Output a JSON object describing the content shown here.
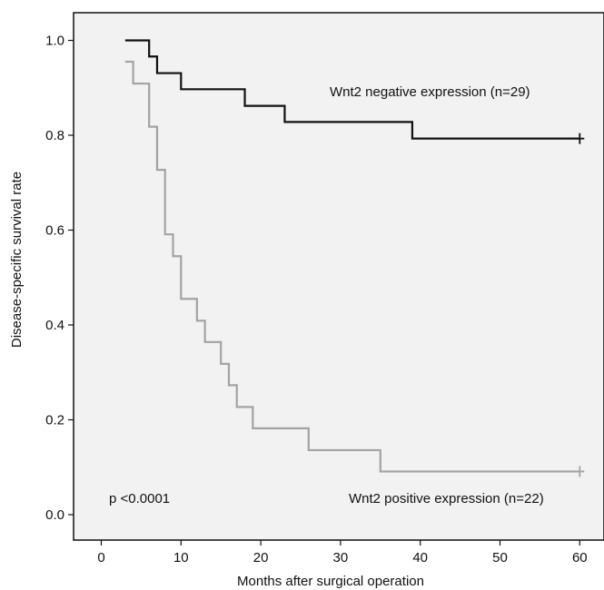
{
  "chart_data": {
    "type": "line",
    "subtype": "kaplan-meier step",
    "xlabel": "Months after surgical operation",
    "ylabel": "Disease-specific survival rate",
    "xlim": [
      -3,
      63
    ],
    "ylim": [
      -0.05,
      1.06
    ],
    "xticks": [
      0,
      10,
      20,
      30,
      40,
      50,
      60
    ],
    "yticks": [
      0.0,
      0.2,
      0.4,
      0.6,
      0.8,
      1.0
    ],
    "xtick_labels": [
      "0",
      "10",
      "20",
      "30",
      "40",
      "50",
      "60"
    ],
    "ytick_labels": [
      "0.0",
      "0.2",
      "0.4",
      "0.6",
      "0.8",
      "1.0"
    ],
    "grid": false,
    "plot_background": "#f2f2f2",
    "series": [
      {
        "name": "Wnt2 negative expression (n=29)",
        "color": "#111111",
        "censor_mark": [
          60,
          0.793
        ],
        "steps": [
          [
            3,
            1.0
          ],
          [
            6,
            0.966
          ],
          [
            7,
            0.931
          ],
          [
            10,
            0.897
          ],
          [
            18,
            0.862
          ],
          [
            23,
            0.828
          ],
          [
            39,
            0.793
          ],
          [
            60,
            0.793
          ]
        ]
      },
      {
        "name": "Wnt2 positive expression (n=22)",
        "color": "#a3a3a3",
        "censor_mark": [
          60,
          0.091
        ],
        "steps": [
          [
            3,
            0.955
          ],
          [
            4,
            0.909
          ],
          [
            6,
            0.818
          ],
          [
            7,
            0.727
          ],
          [
            8,
            0.591
          ],
          [
            9,
            0.545
          ],
          [
            10,
            0.455
          ],
          [
            12,
            0.409
          ],
          [
            13,
            0.364
          ],
          [
            15,
            0.318
          ],
          [
            16,
            0.273
          ],
          [
            17,
            0.227
          ],
          [
            19,
            0.182
          ],
          [
            26,
            0.136
          ],
          [
            35,
            0.091
          ],
          [
            60,
            0.091
          ]
        ]
      }
    ],
    "annotations": [
      "p <0.0001"
    ]
  }
}
